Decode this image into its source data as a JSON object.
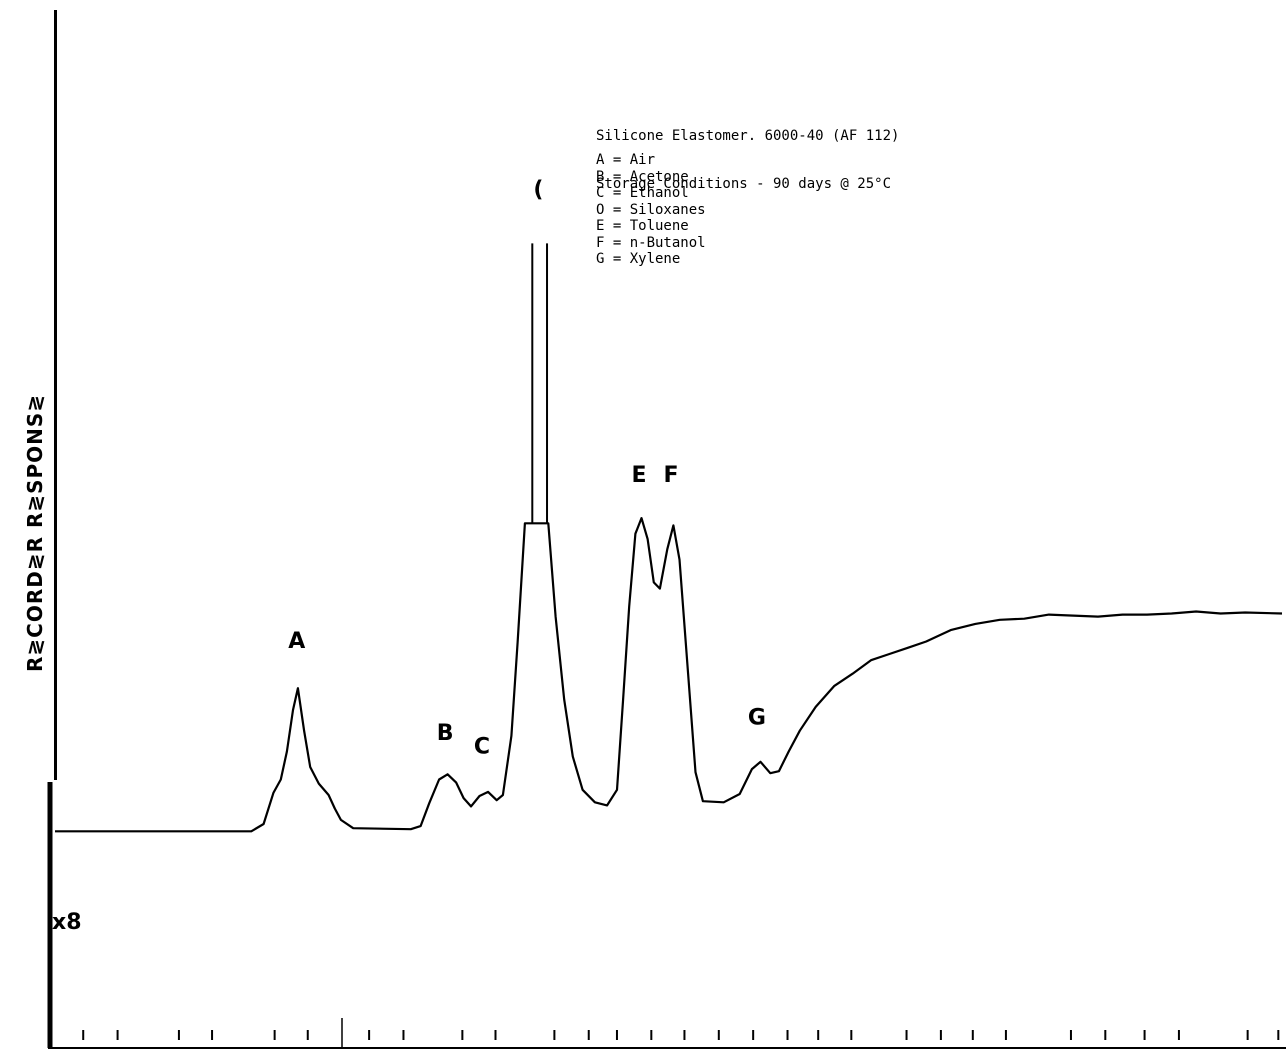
{
  "title_lines": [
    "Silicone Elastomer. 6000-40 (AF 112)",
    "Storage Conditions - 90 days @ 25°C"
  ],
  "ylabel": "R≷CORD≷R  R≷SPONS≷",
  "attenuation_label": "x8",
  "legend": [
    "A = Air",
    "B = Acetone",
    "C = Ethanol",
    "O = Siloxanes",
    "E = Toluene",
    "F = n-Butanol",
    "G = Xylene"
  ],
  "chart_data": {
    "type": "line",
    "title": "",
    "xlabel": "",
    "ylabel": "R≷CORD≷R  R≷SPONS≷",
    "xlim": [
      0,
      100
    ],
    "ylim": [
      0,
      100
    ],
    "grid": false,
    "series": [
      {
        "values": [
          [
            0,
            20.8
          ],
          [
            16,
            20.8
          ],
          [
            17,
            21.5
          ],
          [
            17.8,
            24.5
          ],
          [
            18.4,
            25.8
          ],
          [
            18.9,
            28.5
          ],
          [
            19.4,
            32.5
          ],
          [
            19.8,
            34.6
          ],
          [
            20.3,
            30.5
          ],
          [
            20.8,
            27
          ],
          [
            21.5,
            25.4
          ],
          [
            22.3,
            24.3
          ],
          [
            22.8,
            23
          ],
          [
            23.3,
            21.9
          ],
          [
            24.3,
            21.1
          ],
          [
            29,
            21
          ],
          [
            29.8,
            21.3
          ],
          [
            30.5,
            23.5
          ],
          [
            31.3,
            25.8
          ],
          [
            32,
            26.3
          ],
          [
            32.7,
            25.5
          ],
          [
            33.3,
            24
          ],
          [
            33.9,
            23.2
          ],
          [
            34.6,
            24.2
          ],
          [
            35.3,
            24.6
          ],
          [
            36,
            23.8
          ],
          [
            36.5,
            24.3
          ],
          [
            37.2,
            30
          ],
          [
            37.7,
            39
          ],
          [
            38.3,
            50.5
          ],
          [
            40.2,
            50.5
          ],
          [
            40.8,
            41.5
          ],
          [
            41.5,
            33.5
          ],
          [
            42.2,
            28
          ],
          [
            43,
            24.8
          ],
          [
            44,
            23.6
          ],
          [
            45,
            23.3
          ],
          [
            45.8,
            24.8
          ],
          [
            46.3,
            33.5
          ],
          [
            46.8,
            42.5
          ],
          [
            47.3,
            49.5
          ],
          [
            47.8,
            51
          ],
          [
            48.3,
            49
          ],
          [
            48.8,
            44.8
          ],
          [
            49.3,
            44.2
          ],
          [
            49.9,
            48
          ],
          [
            50.4,
            50.3
          ],
          [
            50.9,
            47
          ],
          [
            51.6,
            36
          ],
          [
            52.2,
            26.5
          ],
          [
            52.8,
            23.7
          ],
          [
            54.5,
            23.6
          ],
          [
            55.8,
            24.4
          ],
          [
            56.8,
            26.8
          ],
          [
            57.5,
            27.5
          ],
          [
            58.3,
            26.4
          ],
          [
            59,
            26.6
          ],
          [
            59.8,
            28.5
          ],
          [
            60.7,
            30.5
          ],
          [
            62,
            32.8
          ],
          [
            63.5,
            34.8
          ],
          [
            65,
            36
          ],
          [
            66.5,
            37.3
          ],
          [
            68,
            37.9
          ],
          [
            69.5,
            38.5
          ],
          [
            71,
            39.1
          ],
          [
            73,
            40.2
          ],
          [
            75,
            40.8
          ],
          [
            77,
            41.2
          ],
          [
            79,
            41.3
          ],
          [
            81,
            41.7
          ],
          [
            83,
            41.6
          ],
          [
            85,
            41.5
          ],
          [
            87,
            41.7
          ],
          [
            89,
            41.7
          ],
          [
            91,
            41.8
          ],
          [
            93,
            42
          ],
          [
            95,
            41.8
          ],
          [
            97,
            41.9
          ],
          [
            100,
            41.8
          ]
        ]
      }
    ],
    "offscale_peak": {
      "label": "|",
      "x": [
        38.9,
        40.1
      ],
      "y_top": 77.5
    },
    "peak_labels": [
      {
        "label": "A",
        "x": 19.7,
        "y": 38.5
      },
      {
        "label": "B",
        "x": 31.8,
        "y": 29.6
      },
      {
        "label": "C",
        "x": 34.8,
        "y": 28.3
      },
      {
        "label": "E",
        "x": 47.6,
        "y": 54.5
      },
      {
        "label": "F",
        "x": 50.2,
        "y": 54.5
      },
      {
        "label": "G",
        "x": 57.2,
        "y": 31.1
      },
      {
        "label": "(",
        "x": 39.4,
        "y": 82
      }
    ],
    "ticks": [
      2.3,
      5.1,
      10.1,
      12.8,
      17.9,
      20.6,
      25.6,
      28.4,
      33.2,
      35.9,
      40.7,
      43.5,
      45.8,
      48.6,
      51.3,
      54.1,
      56.9,
      59.7,
      62.2,
      64.9,
      69.4,
      72.2,
      74.8,
      77.5,
      82.8,
      85.6,
      88.8,
      91.6,
      97.2,
      99.7
    ]
  }
}
